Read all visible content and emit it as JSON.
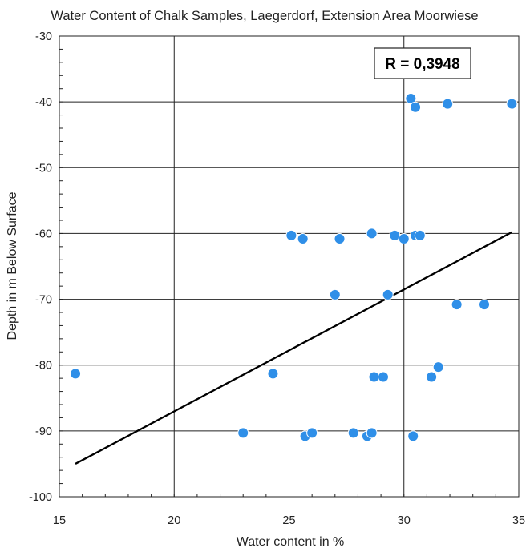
{
  "chart_data": {
    "type": "scatter",
    "title": "Water Content of Chalk Samples, Laegerdorf, Extension Area Moorwiese",
    "xlabel": "Water content in %",
    "ylabel": "Depth in m Below Surface",
    "xlim": [
      15,
      35
    ],
    "ylim": [
      -100,
      -30
    ],
    "x_ticks": [
      15,
      20,
      25,
      30,
      35
    ],
    "y_ticks": [
      -100,
      -90,
      -80,
      -70,
      -60,
      -50,
      -40,
      -30
    ],
    "x_tick_labels": [
      "15",
      "20",
      "25",
      "30",
      "35"
    ],
    "y_tick_labels": [
      "-100",
      "-90",
      "-80",
      "-70",
      "-60",
      "-50",
      "-40",
      "-30"
    ],
    "grid": true,
    "annotation": "R = 0,3948",
    "marker_color": "#2f8fe8",
    "trendline_color": "#000000",
    "points": [
      {
        "x": 15.7,
        "y": -81.3
      },
      {
        "x": 23.0,
        "y": -90.3
      },
      {
        "x": 24.3,
        "y": -81.3
      },
      {
        "x": 25.1,
        "y": -60.3
      },
      {
        "x": 25.6,
        "y": -60.8
      },
      {
        "x": 25.7,
        "y": -90.8
      },
      {
        "x": 26.0,
        "y": -90.3
      },
      {
        "x": 27.0,
        "y": -69.3
      },
      {
        "x": 27.2,
        "y": -60.8
      },
      {
        "x": 27.8,
        "y": -90.3
      },
      {
        "x": 28.4,
        "y": -90.8
      },
      {
        "x": 28.6,
        "y": -60.0
      },
      {
        "x": 28.6,
        "y": -90.3
      },
      {
        "x": 28.7,
        "y": -81.8
      },
      {
        "x": 29.1,
        "y": -81.8
      },
      {
        "x": 29.3,
        "y": -69.3
      },
      {
        "x": 29.6,
        "y": -60.3
      },
      {
        "x": 30.0,
        "y": -60.8
      },
      {
        "x": 30.3,
        "y": -39.5
      },
      {
        "x": 30.4,
        "y": -90.8
      },
      {
        "x": 30.5,
        "y": -60.3
      },
      {
        "x": 30.5,
        "y": -40.8
      },
      {
        "x": 30.7,
        "y": -60.3
      },
      {
        "x": 31.2,
        "y": -81.8
      },
      {
        "x": 31.5,
        "y": -80.3
      },
      {
        "x": 31.9,
        "y": -40.3
      },
      {
        "x": 32.3,
        "y": -70.8
      },
      {
        "x": 33.5,
        "y": -70.8
      },
      {
        "x": 34.7,
        "y": -40.3
      }
    ],
    "trendline": {
      "x": [
        15.7,
        34.7
      ],
      "y": [
        -95.0,
        -59.8
      ]
    }
  }
}
